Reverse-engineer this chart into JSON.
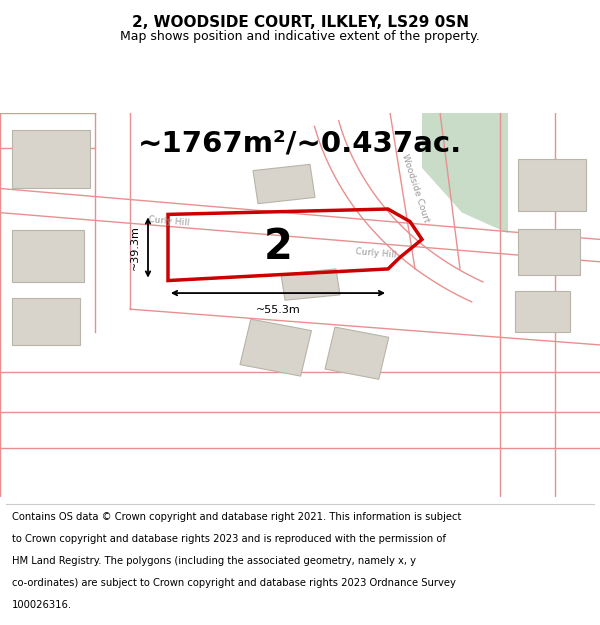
{
  "title": "2, WOODSIDE COURT, ILKLEY, LS29 0SN",
  "subtitle": "Map shows position and indicative extent of the property.",
  "area_text": "~1767m²/~0.437ac.",
  "plot_number": "2",
  "dimension_h": "~39.3m",
  "dimension_w": "~55.3m",
  "footer_lines": [
    "Contains OS data © Crown copyright and database right 2021. This information is subject",
    "to Crown copyright and database rights 2023 and is reproduced with the permission of",
    "HM Land Registry. The polygons (including the associated geometry, namely x, y",
    "co-ordinates) are subject to Crown copyright and database rights 2023 Ordnance Survey",
    "100026316."
  ],
  "bg_color": "#f2ede8",
  "road_color": "#e89090",
  "plot_stroke": "#cc0000",
  "green_fill": "#c8dcc8",
  "building_fill": "#d8d4cc",
  "building_stroke": "#b8b4a8"
}
